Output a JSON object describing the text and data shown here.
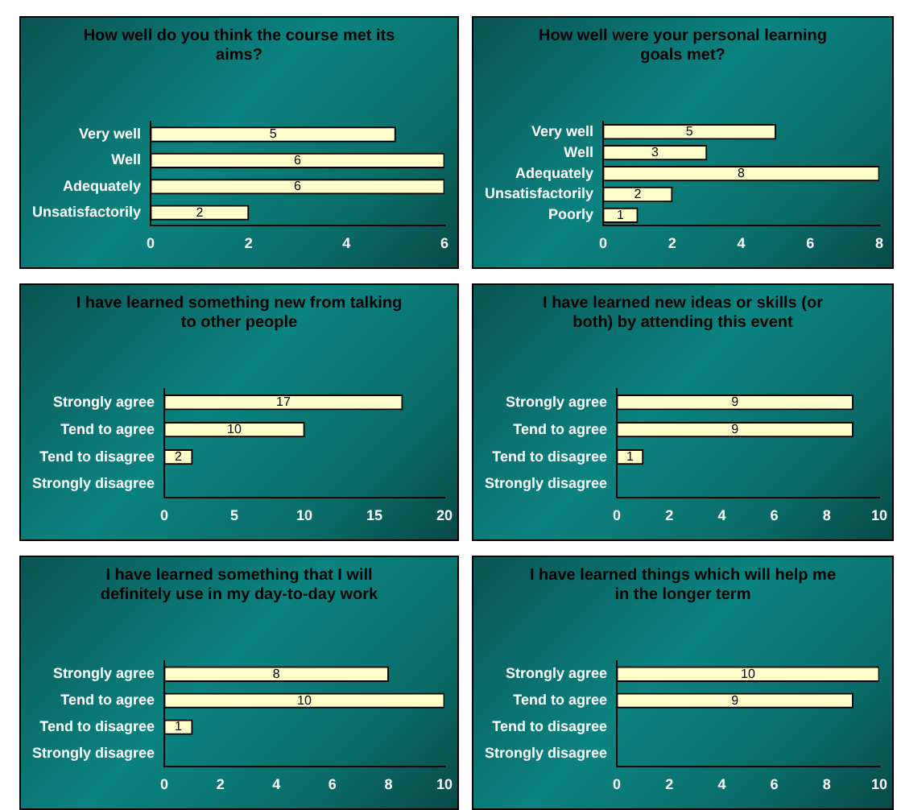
{
  "chart_data": [
    {
      "type": "bar",
      "orientation": "horizontal",
      "title": "How well do you think the course met its aims?",
      "categories": [
        "Very well",
        "Well",
        "Adequately",
        "Unsatisfactorily"
      ],
      "values": [
        5,
        6,
        6,
        2
      ],
      "value_labels": [
        "5",
        "6",
        "6",
        "2"
      ],
      "color": "#ffffcc",
      "xlim": [
        0,
        6
      ],
      "xticks": [
        0,
        2,
        4,
        6
      ],
      "grid": false,
      "legend": false
    },
    {
      "type": "bar",
      "orientation": "horizontal",
      "title": "How well were your personal learning goals met?",
      "categories": [
        "Very well",
        "Well",
        "Adequately",
        "Unsatisfactorily",
        "Poorly"
      ],
      "values": [
        5,
        3,
        8,
        2,
        1
      ],
      "value_labels": [
        "5",
        "3",
        "8",
        "2",
        "1"
      ],
      "color": "#ffffcc",
      "xlim": [
        0,
        8
      ],
      "xticks": [
        0,
        2,
        4,
        6,
        8
      ],
      "grid": false,
      "legend": false
    },
    {
      "type": "bar",
      "orientation": "horizontal",
      "title": "I have learned something new from talking to other people",
      "categories": [
        "Strongly agree",
        "Tend to agree",
        "Tend to disagree",
        "Strongly disagree"
      ],
      "values": [
        17,
        10,
        2,
        0
      ],
      "value_labels": [
        "17",
        "10",
        "2",
        null
      ],
      "color": "#ffffcc",
      "xlim": [
        0,
        20
      ],
      "xticks": [
        0,
        5,
        10,
        15,
        20
      ],
      "grid": false,
      "legend": false
    },
    {
      "type": "bar",
      "orientation": "horizontal",
      "title": "I have learned new ideas or skills (or both) by attending this event",
      "categories": [
        "Strongly agree",
        "Tend to agree",
        "Tend to disagree",
        "Strongly disagree"
      ],
      "values": [
        9,
        9,
        1,
        0
      ],
      "value_labels": [
        "9",
        "9",
        "1",
        null
      ],
      "color": "#ffffcc",
      "xlim": [
        0,
        10
      ],
      "xticks": [
        0,
        2,
        4,
        6,
        8,
        10
      ],
      "grid": false,
      "legend": false
    },
    {
      "type": "bar",
      "orientation": "horizontal",
      "title": "I have learned something that I will definitely use in my day-to-day work",
      "categories": [
        "Strongly agree",
        "Tend to agree",
        "Tend to disagree",
        "Strongly disagree"
      ],
      "values": [
        8,
        10,
        1,
        0
      ],
      "value_labels": [
        "8",
        "10",
        "1",
        null
      ],
      "color": "#ffffcc",
      "xlim": [
        0,
        10
      ],
      "xticks": [
        0,
        2,
        4,
        6,
        8,
        10
      ],
      "grid": false,
      "legend": false
    },
    {
      "type": "bar",
      "orientation": "horizontal",
      "title": "I have learned things which will help me in the longer term",
      "categories": [
        "Strongly agree",
        "Tend to agree",
        "Tend to disagree",
        "Strongly disagree"
      ],
      "values": [
        10,
        9,
        0,
        0
      ],
      "value_labels": [
        "10",
        "9",
        null,
        null
      ],
      "color": "#ffffcc",
      "xlim": [
        0,
        10
      ],
      "xticks": [
        0,
        2,
        4,
        6,
        8,
        10
      ],
      "grid": false,
      "legend": false
    }
  ]
}
